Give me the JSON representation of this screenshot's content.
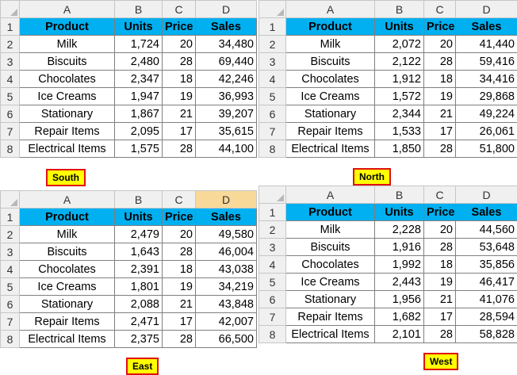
{
  "columns": {
    "row_header": "",
    "a": "A",
    "b": "B",
    "c": "C",
    "d": "D"
  },
  "headers": {
    "product": "Product",
    "units": "Units",
    "price": "Price",
    "sales": "Sales"
  },
  "sheets": [
    {
      "region": "South",
      "rows": [
        {
          "n": "2",
          "product": "Milk",
          "units": "1,724",
          "price": "20",
          "sales": "34,480"
        },
        {
          "n": "3",
          "product": "Biscuits",
          "units": "2,480",
          "price": "28",
          "sales": "69,440"
        },
        {
          "n": "4",
          "product": "Chocolates",
          "units": "2,347",
          "price": "18",
          "sales": "42,246"
        },
        {
          "n": "5",
          "product": "Ice Creams",
          "units": "1,947",
          "price": "19",
          "sales": "36,993"
        },
        {
          "n": "6",
          "product": "Stationary",
          "units": "1,867",
          "price": "21",
          "sales": "39,207"
        },
        {
          "n": "7",
          "product": "Repair Items",
          "units": "2,095",
          "price": "17",
          "sales": "35,615"
        },
        {
          "n": "8",
          "product": "Electrical Items",
          "units": "1,575",
          "price": "28",
          "sales": "44,100"
        }
      ]
    },
    {
      "region": "North",
      "rows": [
        {
          "n": "2",
          "product": "Milk",
          "units": "2,072",
          "price": "20",
          "sales": "41,440"
        },
        {
          "n": "3",
          "product": "Biscuits",
          "units": "2,122",
          "price": "28",
          "sales": "59,416"
        },
        {
          "n": "4",
          "product": "Chocolates",
          "units": "1,912",
          "price": "18",
          "sales": "34,416"
        },
        {
          "n": "5",
          "product": "Ice Creams",
          "units": "1,572",
          "price": "19",
          "sales": "29,868"
        },
        {
          "n": "6",
          "product": "Stationary",
          "units": "2,344",
          "price": "21",
          "sales": "49,224"
        },
        {
          "n": "7",
          "product": "Repair Items",
          "units": "1,533",
          "price": "17",
          "sales": "26,061"
        },
        {
          "n": "8",
          "product": "Electrical Items",
          "units": "1,850",
          "price": "28",
          "sales": "51,800"
        }
      ]
    },
    {
      "region": "East",
      "rows": [
        {
          "n": "2",
          "product": "Milk",
          "units": "2,479",
          "price": "20",
          "sales": "49,580"
        },
        {
          "n": "3",
          "product": "Biscuits",
          "units": "1,643",
          "price": "28",
          "sales": "46,004"
        },
        {
          "n": "4",
          "product": "Chocolates",
          "units": "2,391",
          "price": "18",
          "sales": "43,038"
        },
        {
          "n": "5",
          "product": "Ice Creams",
          "units": "1,801",
          "price": "19",
          "sales": "34,219"
        },
        {
          "n": "6",
          "product": "Stationary",
          "units": "2,088",
          "price": "21",
          "sales": "43,848"
        },
        {
          "n": "7",
          "product": "Repair Items",
          "units": "2,471",
          "price": "17",
          "sales": "42,007"
        },
        {
          "n": "8",
          "product": "Electrical Items",
          "units": "2,375",
          "price": "28",
          "sales": "66,500"
        }
      ]
    },
    {
      "region": "West",
      "rows": [
        {
          "n": "2",
          "product": "Milk",
          "units": "2,228",
          "price": "20",
          "sales": "44,560"
        },
        {
          "n": "3",
          "product": "Biscuits",
          "units": "1,916",
          "price": "28",
          "sales": "53,648"
        },
        {
          "n": "4",
          "product": "Chocolates",
          "units": "1,992",
          "price": "18",
          "sales": "35,856"
        },
        {
          "n": "5",
          "product": "Ice Creams",
          "units": "2,443",
          "price": "19",
          "sales": "46,417"
        },
        {
          "n": "6",
          "product": "Stationary",
          "units": "1,956",
          "price": "21",
          "sales": "41,076"
        },
        {
          "n": "7",
          "product": "Repair Items",
          "units": "1,682",
          "price": "17",
          "sales": "28,594"
        },
        {
          "n": "8",
          "product": "Electrical Items",
          "units": "2,101",
          "price": "28",
          "sales": "58,828"
        }
      ]
    }
  ],
  "header_row_number": "1",
  "colors": {
    "header_fill": "#00b0f0",
    "label_fill": "#ffff00",
    "label_border": "#e01010"
  }
}
